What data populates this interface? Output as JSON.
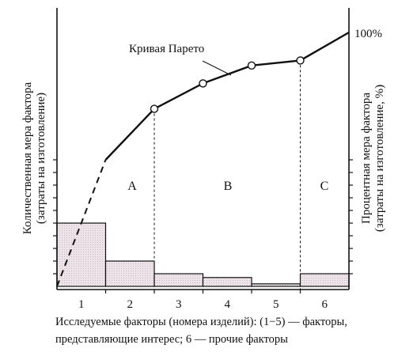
{
  "chart_data": {
    "type": "bar",
    "categories": [
      "1",
      "2",
      "3",
      "4",
      "5",
      "6"
    ],
    "series": [
      {
        "values": [
          5,
          2,
          1,
          0.7,
          0.2,
          1
        ]
      }
    ],
    "cumulative_percent": [
      50,
      70,
      80,
      87,
      89,
      100
    ],
    "cumulative_markers": [
      70,
      80,
      87,
      89
    ],
    "right_axis_label": "100%",
    "curve_label": "Кривая Парето",
    "zones": [
      "A",
      "B",
      "C"
    ],
    "ylabel_left_line1": "Количественная мера фактора",
    "ylabel_left_line2": "(затраты на изготовление)",
    "ylabel_right_line1": "Процентная мера фактора",
    "ylabel_right_line2": "(затраты на изготовление, %)",
    "caption_line1": "Исследуемые факторы (номера изделий): (1−5) — факторы,",
    "caption_line2": "представляющие интерес; 6 — прочие факторы",
    "ylim": [
      0,
      10
    ],
    "ylim_right": [
      0,
      100
    ],
    "colors": {
      "bar_fill": "#ece4e8",
      "line": "#111111",
      "marker_fill": "#ffffff"
    }
  }
}
